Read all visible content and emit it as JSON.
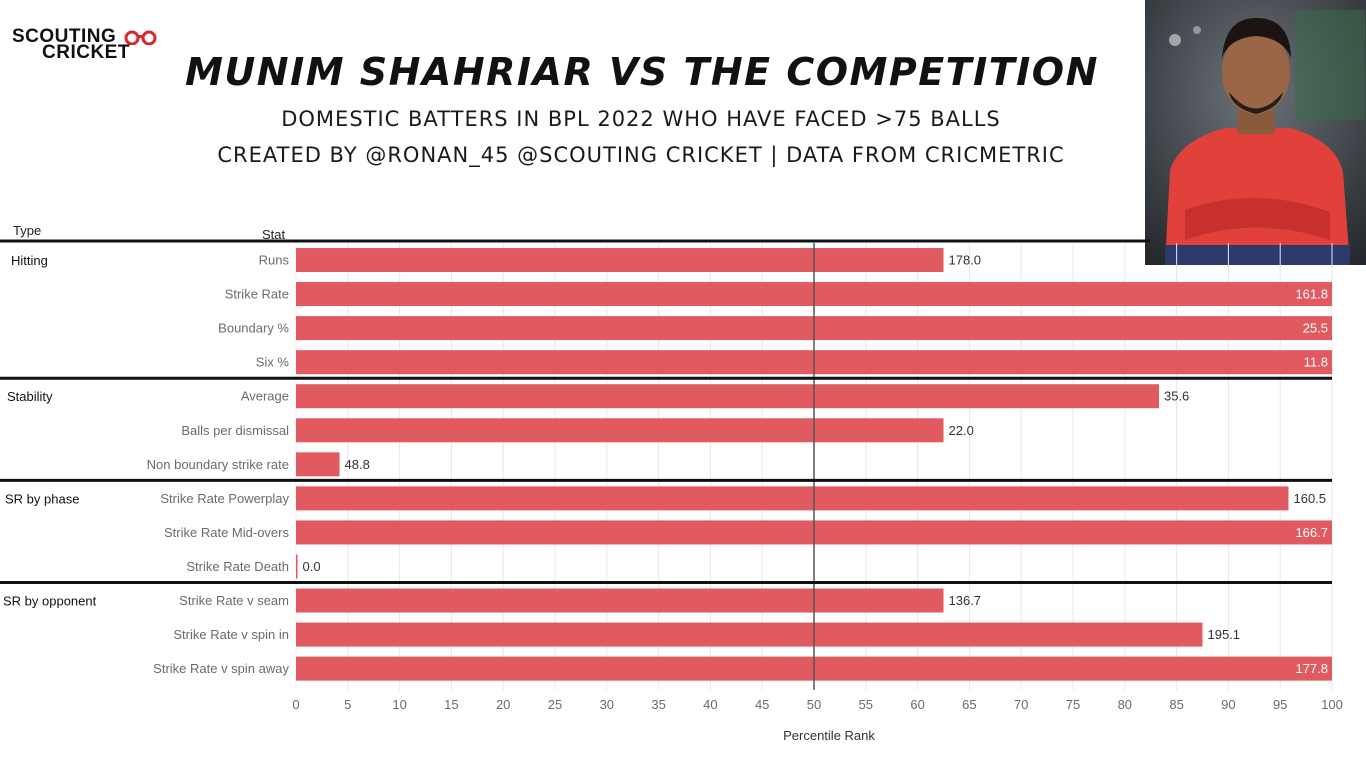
{
  "branding": {
    "logo_line1": "SCOUTING",
    "logo_line2": "CRICKET"
  },
  "header": {
    "title": "MUNIM SHAHRIAR VS THE COMPETITION",
    "subtitle1": "DOMESTIC BATTERS IN BPL 2022 WHO HAVE FACED >75 BALLS",
    "subtitle2": "CREATED BY @RONAN_45 @SCOUTING CRICKET | DATA FROM CRICMETRIC"
  },
  "columns": {
    "type_label": "Type",
    "stat_label": "Stat"
  },
  "colors": {
    "bar": "#e05a5f",
    "separator": "#111111",
    "gridline": "#e8e8e8",
    "median_line": "#555555"
  },
  "chart_data": {
    "type": "bar",
    "orientation": "horizontal",
    "xlabel": "Percentile Rank",
    "xlim": [
      0,
      100
    ],
    "xticks": [
      0,
      5,
      10,
      15,
      20,
      25,
      30,
      35,
      40,
      45,
      50,
      55,
      60,
      65,
      70,
      75,
      80,
      85,
      90,
      95,
      100
    ],
    "reference_line": 50,
    "groups": [
      {
        "type": "Hitting",
        "rows": [
          {
            "stat": "Runs",
            "percentile": 62.5,
            "label": "178.0"
          },
          {
            "stat": "Strike Rate",
            "percentile": 100,
            "label": "161.8"
          },
          {
            "stat": "Boundary %",
            "percentile": 100,
            "label": "25.5"
          },
          {
            "stat": "Six %",
            "percentile": 100,
            "label": "11.8"
          }
        ]
      },
      {
        "type": "Stability",
        "rows": [
          {
            "stat": "Average",
            "percentile": 83.3,
            "label": "35.6"
          },
          {
            "stat": "Balls per dismissal",
            "percentile": 62.5,
            "label": "22.0"
          },
          {
            "stat": "Non boundary strike rate",
            "percentile": 4.2,
            "label": "48.8"
          }
        ]
      },
      {
        "type": "SR by phase",
        "rows": [
          {
            "stat": "Strike Rate Powerplay",
            "percentile": 95.8,
            "label": "160.5"
          },
          {
            "stat": "Strike Rate Mid-overs",
            "percentile": 100,
            "label": "166.7"
          },
          {
            "stat": "Strike Rate Death",
            "percentile": 0,
            "label": "0.0"
          }
        ]
      },
      {
        "type": "SR by opponent",
        "rows": [
          {
            "stat": "Strike Rate v seam",
            "percentile": 62.5,
            "label": "136.7"
          },
          {
            "stat": "Strike Rate v spin in",
            "percentile": 87.5,
            "label": "195.1"
          },
          {
            "stat": "Strike Rate v spin away",
            "percentile": 100,
            "label": "177.8"
          }
        ]
      }
    ]
  }
}
